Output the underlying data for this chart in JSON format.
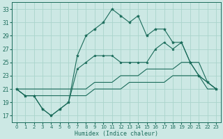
{
  "xlabel": "Humidex (Indice chaleur)",
  "background_color": "#cce8e4",
  "grid_color": "#aad4cc",
  "line_color": "#1a6b5a",
  "xlim": [
    -0.5,
    23.5
  ],
  "ylim": [
    16,
    34
  ],
  "yticks": [
    17,
    19,
    21,
    23,
    25,
    27,
    29,
    31,
    33
  ],
  "xticks": [
    0,
    1,
    2,
    3,
    4,
    5,
    6,
    7,
    8,
    9,
    10,
    11,
    12,
    13,
    14,
    15,
    16,
    17,
    18,
    19,
    20,
    21,
    22,
    23
  ],
  "main_line": [
    21,
    20,
    20,
    18,
    17,
    18,
    19,
    26,
    29,
    30,
    31,
    33,
    32,
    31,
    32,
    29,
    30,
    30,
    28,
    28,
    25,
    23,
    22,
    21
  ],
  "mid_line": [
    21,
    20,
    20,
    18,
    17,
    18,
    19,
    24,
    25,
    26,
    26,
    26,
    25,
    25,
    25,
    25,
    27,
    28,
    27,
    28,
    25,
    23,
    22,
    21
  ],
  "upper_band": [
    21,
    21,
    21,
    21,
    21,
    21,
    21,
    21,
    21,
    22,
    22,
    22,
    23,
    23,
    23,
    24,
    24,
    24,
    24,
    25,
    25,
    25,
    22,
    21
  ],
  "lower_band": [
    21,
    20,
    20,
    20,
    20,
    20,
    20,
    20,
    20,
    21,
    21,
    21,
    21,
    22,
    22,
    22,
    22,
    22,
    23,
    23,
    23,
    23,
    21,
    21
  ]
}
